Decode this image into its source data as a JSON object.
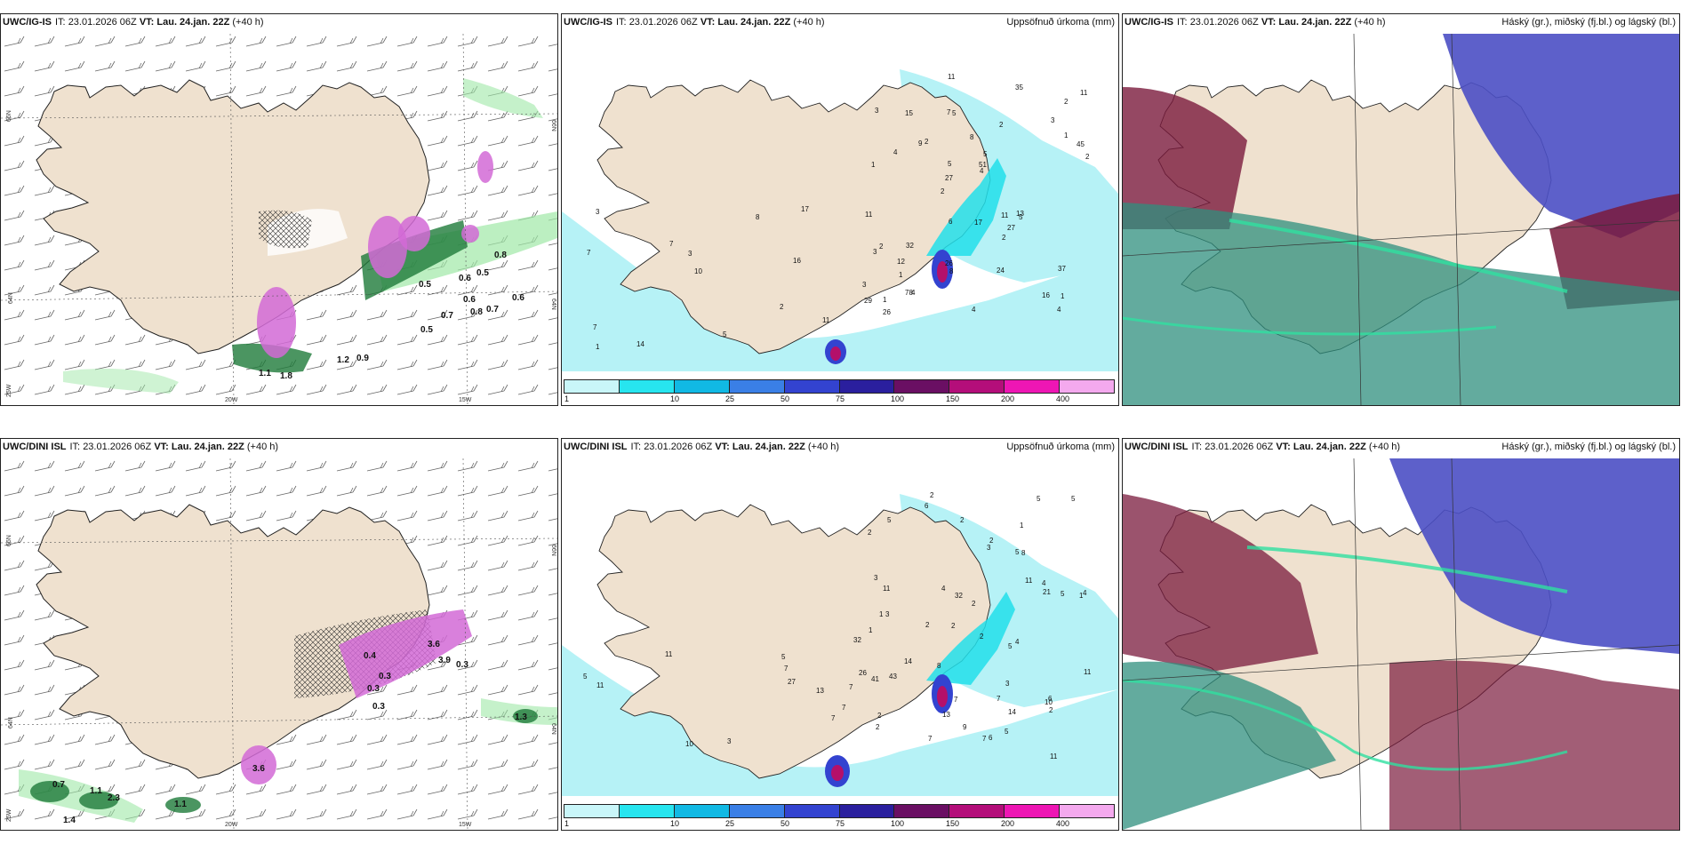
{
  "colors": {
    "land": "#efe1cf",
    "coast": "#222222",
    "rain_light": "#b6f2f6",
    "rain_mid": "#22dfea",
    "rain_heavy": "#b4106a",
    "cloud_high": "#7a1a3c",
    "cloud_mid": "#4b4fc4",
    "cloud_low": "#2f8f7d"
  },
  "legend": {
    "colors": [
      "#c9f6f9",
      "#27e5ef",
      "#11b9e4",
      "#3a7fe6",
      "#3343d0",
      "#2a1f9e",
      "#6a0f63",
      "#b40e7a",
      "#ee16b4",
      "#f4a9ee"
    ],
    "ticks": [
      "1",
      "10",
      "25",
      "50",
      "75",
      "100",
      "150",
      "200",
      "400"
    ]
  },
  "panels": [
    {
      "model": "UWC/IG-IS",
      "it_label": "IT:",
      "it_value": "23.01.2026 06Z",
      "vt_label": "VT:",
      "vt_value": "Lau. 24.jan. 22Z",
      "lead": "(+40 h)",
      "title": "",
      "lat_labels": [
        "66N",
        "64N",
        "25W"
      ],
      "lon_labels": [
        "20W",
        "15W"
      ],
      "right_lat_labels": [
        "66N",
        "64N"
      ],
      "contour_labels": [
        "0.8",
        "0.5",
        "0.6",
        "0.6",
        "0.5",
        "0.7",
        "0.8",
        "0.7",
        "0.6",
        "0.5",
        "1.2",
        "0.9",
        "1.1",
        "1.8"
      ]
    },
    {
      "model": "UWC/IG-IS",
      "it_label": "IT:",
      "it_value": "23.01.2026 06Z",
      "vt_label": "VT:",
      "vt_value": "Lau. 24.jan. 22Z",
      "lead": "(+40 h)",
      "title": "Uppsöfnuð úrkoma (mm)",
      "numbers": [
        "1",
        "1",
        "2",
        "2",
        "2",
        "1",
        "7",
        "8",
        "2",
        "2",
        "3",
        "1",
        "5",
        "5",
        "5",
        "3",
        "11",
        "2",
        "11",
        "1",
        "27",
        "26",
        "5",
        "15",
        "35",
        "32",
        "16",
        "37",
        "13",
        "4",
        "9",
        "4",
        "2",
        "78",
        "45",
        "51",
        "29",
        "8",
        "4",
        "3",
        "3",
        "11",
        "27",
        "24",
        "12",
        "26",
        "1",
        "11",
        "17",
        "17",
        "10",
        "7",
        "7",
        "6",
        "14",
        "11",
        "8",
        "16",
        "4",
        "2",
        "5",
        "4",
        "3",
        "7",
        "3"
      ]
    },
    {
      "model": "UWC/IG-IS",
      "it_label": "IT:",
      "it_value": "23.01.2026 06Z",
      "vt_label": "VT:",
      "vt_value": "Lau. 24.jan. 22Z",
      "lead": "(+40 h)",
      "title": "Háský (gr.), miðský (fj.bl.) og lágský (bl.)"
    },
    {
      "model": "UWC/DINI ISL",
      "it_label": "IT:",
      "it_value": "23.01.2026 06Z",
      "vt_label": "VT:",
      "vt_value": "Lau. 24.jan. 22Z",
      "lead": "(+40 h)",
      "title": "",
      "lat_labels": [
        "66N",
        "64N",
        "25W"
      ],
      "lon_labels": [
        "20W",
        "15W"
      ],
      "right_lat_labels": [
        "66N",
        "64N"
      ],
      "contour_labels": [
        "0.4",
        "0.3",
        "3.6",
        "3.9",
        "0.3",
        "0.3",
        "0.3",
        "1.3",
        "3.6",
        "0.7",
        "1.1",
        "2.3",
        "1.1",
        "1.4"
      ]
    },
    {
      "model": "UWC/DINI ISL",
      "it_label": "IT:",
      "it_value": "23.01.2026 06Z",
      "vt_label": "VT:",
      "vt_value": "Lau. 24.jan. 22Z",
      "lead": "(+40 h)",
      "title": "Uppsöfnuð úrkoma (mm)",
      "numbers": [
        "2",
        "1",
        "1",
        "2",
        "2",
        "3",
        "2",
        "5",
        "1",
        "3",
        "2",
        "2",
        "6",
        "2",
        "7",
        "6",
        "7",
        "5",
        "11",
        "14",
        "11",
        "1",
        "4",
        "5",
        "26",
        "3",
        "32",
        "21",
        "6",
        "41",
        "10",
        "2",
        "43",
        "4",
        "3",
        "11",
        "4",
        "13",
        "5",
        "2",
        "2",
        "7",
        "5",
        "5",
        "9",
        "8",
        "2",
        "8",
        "5",
        "7",
        "5",
        "7",
        "7",
        "5",
        "32",
        "10",
        "27",
        "13",
        "4",
        "7",
        "11",
        "14",
        "11",
        "3",
        "7",
        "11"
      ]
    },
    {
      "model": "UWC/DINI ISL",
      "it_label": "IT:",
      "it_value": "23.01.2026 06Z",
      "vt_label": "VT:",
      "vt_value": "Lau. 24.jan. 22Z",
      "lead": "(+40 h)",
      "title": "Háský (gr.), miðský (fj.bl.) og lágský (bl.)"
    }
  ]
}
